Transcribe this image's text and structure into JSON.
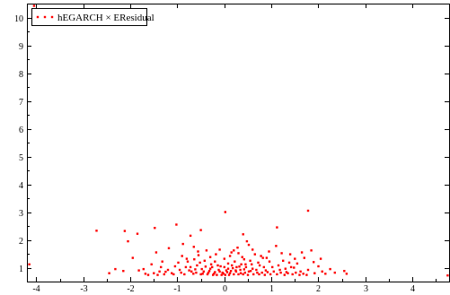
{
  "chart_data": {
    "type": "scatter",
    "xlim": [
      -4.2,
      4.8
    ],
    "ylim": [
      0.5,
      10.5
    ],
    "xticks": [
      -4,
      -3,
      -2,
      -1,
      0,
      1,
      2,
      3,
      4
    ],
    "yticks": [
      1,
      2,
      3,
      4,
      5,
      6,
      7,
      8,
      9,
      10
    ],
    "grid": false,
    "legend_position": "top-left",
    "marker_color": "#ff0000",
    "series": [
      {
        "name": "hEGARCH × EResidual",
        "points": [
          [
            -4.05,
            10.42
          ],
          [
            -4.15,
            1.12
          ],
          [
            -2.72,
            2.33
          ],
          [
            -2.12,
            2.32
          ],
          [
            -1.85,
            2.22
          ],
          [
            -1.48,
            2.43
          ],
          [
            -1.02,
            2.55
          ],
          [
            0.02,
            3.0
          ],
          [
            1.78,
            3.05
          ],
          [
            1.12,
            2.45
          ],
          [
            0.4,
            2.2
          ],
          [
            -0.5,
            2.35
          ],
          [
            -0.72,
            2.15
          ],
          [
            -2.05,
            1.95
          ],
          [
            -2.32,
            0.95
          ],
          [
            -2.15,
            0.88
          ],
          [
            -1.95,
            1.35
          ],
          [
            -1.82,
            0.9
          ],
          [
            -1.68,
            0.78
          ],
          [
            -1.55,
            1.12
          ],
          [
            -1.45,
            1.55
          ],
          [
            -1.32,
            1.22
          ],
          [
            -1.25,
            0.85
          ],
          [
            -1.18,
            1.7
          ],
          [
            -1.05,
            1.05
          ],
          [
            -0.95,
            0.92
          ],
          [
            -0.88,
            1.85
          ],
          [
            -0.8,
            1.32
          ],
          [
            -0.72,
            1.02
          ],
          [
            -0.65,
            1.75
          ],
          [
            -0.6,
            0.82
          ],
          [
            -0.55,
            1.45
          ],
          [
            -0.48,
            0.95
          ],
          [
            -0.42,
            1.25
          ],
          [
            -0.38,
            1.62
          ],
          [
            -0.32,
            0.88
          ],
          [
            -0.28,
            1.12
          ],
          [
            -0.22,
            0.78
          ],
          [
            -0.18,
            1.48
          ],
          [
            -0.12,
            0.92
          ],
          [
            -0.08,
            1.05
          ],
          [
            -0.04,
            0.82
          ],
          [
            0.0,
            1.32
          ],
          [
            0.04,
            0.9
          ],
          [
            0.08,
            1.15
          ],
          [
            0.12,
            0.8
          ],
          [
            0.15,
            1.55
          ],
          [
            0.18,
            0.98
          ],
          [
            0.22,
            1.22
          ],
          [
            0.25,
            0.86
          ],
          [
            0.28,
            1.72
          ],
          [
            0.32,
            1.04
          ],
          [
            0.35,
            0.8
          ],
          [
            0.38,
            1.38
          ],
          [
            0.42,
            0.94
          ],
          [
            0.45,
            1.12
          ],
          [
            0.48,
            1.95
          ],
          [
            0.52,
            0.86
          ],
          [
            0.55,
            1.25
          ],
          [
            0.6,
            0.96
          ],
          [
            0.65,
            1.48
          ],
          [
            0.7,
            0.82
          ],
          [
            0.75,
            1.08
          ],
          [
            0.82,
            1.35
          ],
          [
            0.88,
            0.9
          ],
          [
            0.95,
            1.58
          ],
          [
            1.02,
            1.02
          ],
          [
            1.1,
            1.78
          ],
          [
            1.18,
            0.92
          ],
          [
            1.25,
            1.25
          ],
          [
            1.32,
            0.84
          ],
          [
            1.4,
            1.48
          ],
          [
            1.48,
            1.0
          ],
          [
            1.55,
            1.15
          ],
          [
            1.62,
            0.86
          ],
          [
            1.7,
            1.35
          ],
          [
            1.78,
            0.92
          ],
          [
            1.85,
            1.62
          ],
          [
            1.92,
            0.8
          ],
          [
            2.0,
            1.05
          ],
          [
            2.08,
            0.86
          ],
          [
            2.15,
            0.78
          ],
          [
            2.25,
            0.95
          ],
          [
            2.35,
            0.82
          ],
          [
            2.55,
            0.88
          ],
          [
            2.6,
            0.78
          ],
          [
            4.75,
            0.72
          ],
          [
            -2.45,
            0.8
          ],
          [
            -1.72,
            0.95
          ],
          [
            -1.38,
            0.86
          ],
          [
            -1.12,
            0.8
          ],
          [
            -0.98,
            1.18
          ],
          [
            -0.85,
            0.76
          ],
          [
            -0.75,
            0.9
          ],
          [
            -0.66,
            0.78
          ],
          [
            -0.58,
            1.08
          ],
          [
            -0.5,
            0.76
          ],
          [
            -0.44,
            0.86
          ],
          [
            -0.36,
            0.76
          ],
          [
            -0.3,
            0.96
          ],
          [
            -0.24,
            0.74
          ],
          [
            -0.2,
            0.84
          ],
          [
            -0.16,
            0.74
          ],
          [
            -0.1,
            0.86
          ],
          [
            -0.06,
            0.74
          ],
          [
            -0.02,
            0.78
          ],
          [
            0.02,
            0.74
          ],
          [
            0.06,
            0.84
          ],
          [
            0.1,
            0.74
          ],
          [
            0.14,
            0.88
          ],
          [
            0.2,
            0.76
          ],
          [
            0.24,
            0.9
          ],
          [
            0.3,
            0.76
          ],
          [
            0.34,
            0.92
          ],
          [
            0.4,
            0.76
          ],
          [
            0.44,
            0.82
          ],
          [
            0.5,
            0.74
          ],
          [
            0.56,
            0.88
          ],
          [
            0.62,
            0.76
          ],
          [
            0.68,
            0.92
          ],
          [
            0.74,
            0.76
          ],
          [
            0.8,
            0.82
          ],
          [
            0.86,
            0.74
          ],
          [
            0.92,
            0.84
          ],
          [
            0.98,
            0.76
          ],
          [
            1.05,
            0.86
          ],
          [
            1.12,
            0.76
          ],
          [
            1.2,
            0.82
          ],
          [
            1.28,
            0.74
          ],
          [
            1.35,
            0.8
          ],
          [
            1.45,
            0.76
          ],
          [
            1.52,
            0.82
          ],
          [
            1.6,
            0.74
          ],
          [
            1.68,
            0.78
          ],
          [
            1.75,
            0.74
          ],
          [
            -1.62,
            0.74
          ],
          [
            -1.5,
            0.8
          ],
          [
            -1.42,
            0.74
          ],
          [
            -1.28,
            0.76
          ],
          [
            -1.2,
            0.92
          ],
          [
            -1.08,
            0.76
          ],
          [
            -0.92,
            0.82
          ],
          [
            -0.82,
            1.02
          ],
          [
            -0.7,
            0.86
          ],
          [
            -0.62,
            0.94
          ],
          [
            -0.52,
            1.18
          ],
          [
            -0.46,
            0.78
          ],
          [
            -0.4,
            1.04
          ],
          [
            -0.34,
            0.82
          ],
          [
            -0.26,
            1.02
          ],
          [
            -0.14,
            1.08
          ],
          [
            0.0,
            1.02
          ],
          [
            0.08,
            0.96
          ],
          [
            0.16,
            1.08
          ],
          [
            0.26,
            1.02
          ],
          [
            0.36,
            1.12
          ],
          [
            0.46,
            1.02
          ],
          [
            0.58,
            1.12
          ],
          [
            0.72,
            1.18
          ],
          [
            0.84,
            1.02
          ],
          [
            0.96,
            1.22
          ],
          [
            1.15,
            1.08
          ],
          [
            1.3,
            0.96
          ],
          [
            1.42,
            1.02
          ],
          [
            -0.9,
            1.42
          ],
          [
            -0.56,
            1.58
          ],
          [
            -0.3,
            1.38
          ],
          [
            0.12,
            1.42
          ],
          [
            0.3,
            1.52
          ],
          [
            0.6,
            1.65
          ],
          [
            0.9,
            1.35
          ],
          [
            1.22,
            1.52
          ],
          [
            1.5,
            1.32
          ],
          [
            1.65,
            1.55
          ],
          [
            -1.35,
            1.02
          ],
          [
            -0.78,
            1.22
          ],
          [
            -0.2,
            1.22
          ],
          [
            0.42,
            1.3
          ],
          [
            0.78,
            1.42
          ],
          [
            1.38,
            1.18
          ],
          [
            1.9,
            1.2
          ],
          [
            2.05,
            1.32
          ],
          [
            -0.64,
            1.3
          ],
          [
            0.2,
            1.62
          ],
          [
            0.52,
            1.82
          ],
          [
            -0.1,
            1.65
          ]
        ]
      }
    ]
  }
}
